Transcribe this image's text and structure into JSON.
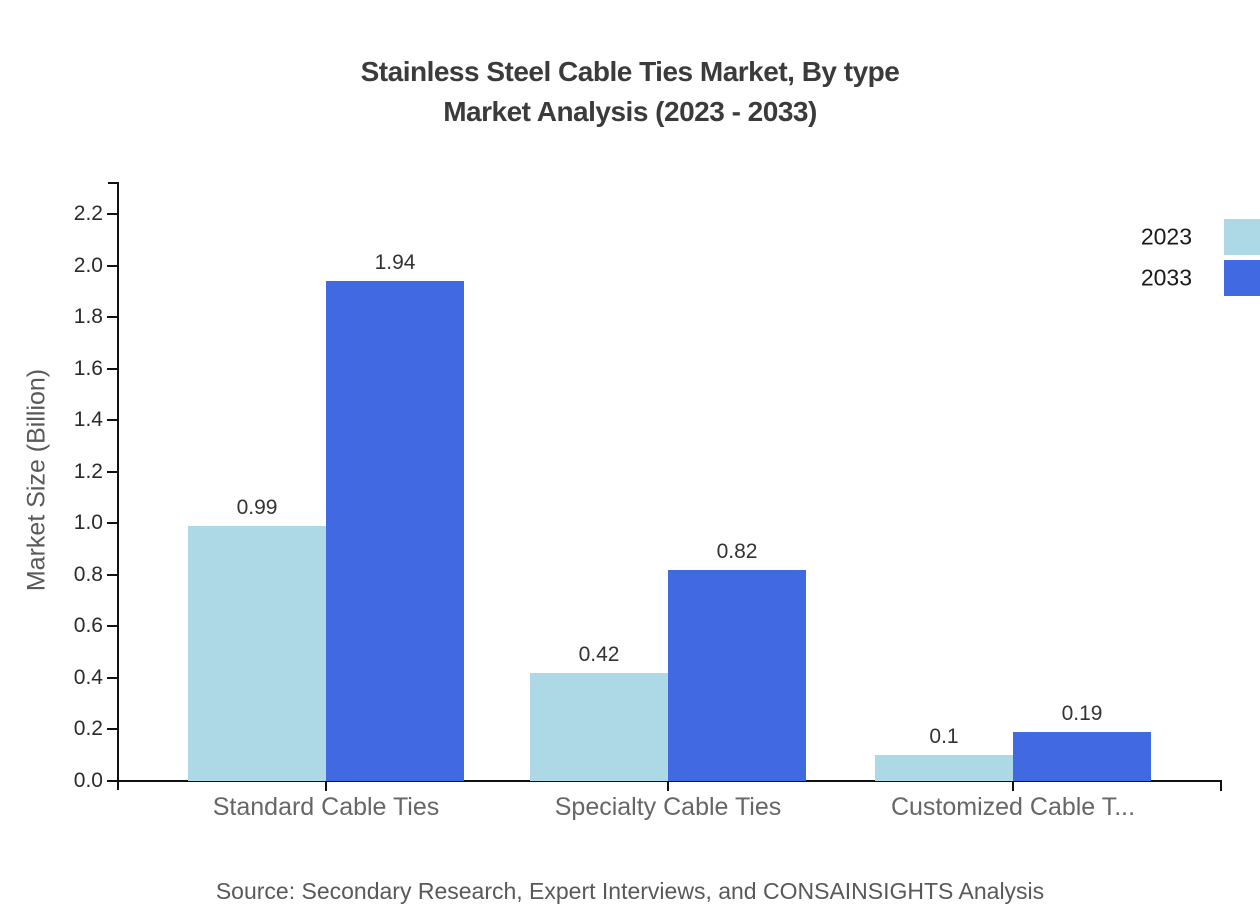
{
  "title": {
    "line1": "Stainless Steel Cable Ties Market, By type",
    "line2": "Market Analysis (2023 - 2033)"
  },
  "source": "Source: Secondary Research, Expert Interviews, and CONSAINSIGHTS Analysis",
  "chart_data": {
    "type": "bar",
    "title": "Stainless Steel Cable Ties Market, By type Market Analysis (2023 - 2033)",
    "categories": [
      "Standard Cable Ties",
      "Specialty Cable Ties",
      "Customized Cable T..."
    ],
    "series": [
      {
        "name": "2023",
        "color": "#ADD8E6",
        "values": [
          0.99,
          0.42,
          0.1
        ]
      },
      {
        "name": "2033",
        "color": "#4169E1",
        "values": [
          1.94,
          0.82,
          0.19
        ]
      }
    ],
    "xlabel": "",
    "ylabel": "Market Size (Billion)",
    "ylim": [
      0,
      2.3
    ],
    "ytick_labels": [
      "0.0",
      "0.2",
      "0.4",
      "0.6",
      "0.8",
      "1.0",
      "1.2",
      "1.4",
      "1.6",
      "1.8",
      "2.0",
      "2.2"
    ],
    "grid": false,
    "legend_position": "top-right",
    "axis_color": "#111111"
  }
}
